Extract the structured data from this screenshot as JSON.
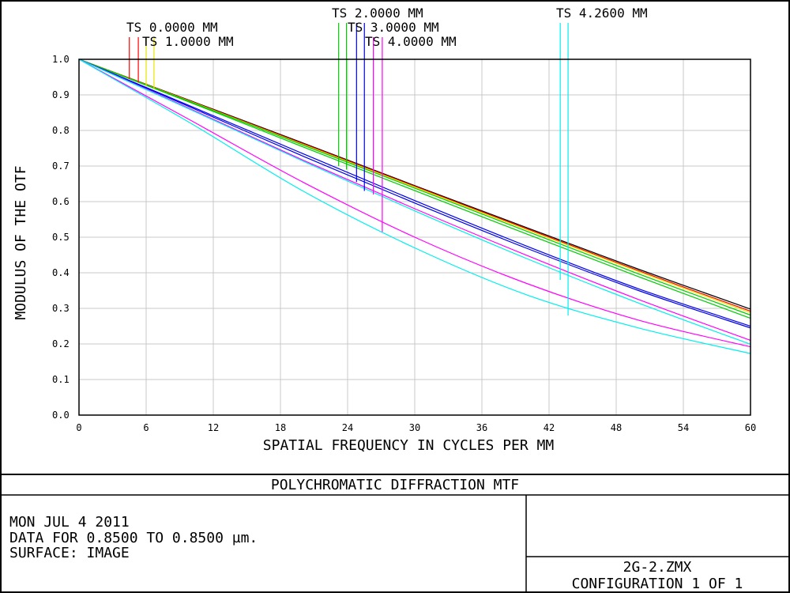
{
  "chart_data": {
    "type": "line",
    "title": "POLYCHROMATIC DIFFRACTION MTF",
    "xlabel": "SPATIAL FREQUENCY IN CYCLES PER MM",
    "ylabel": "MODULUS OF THE OTF",
    "xlim": [
      0,
      60
    ],
    "ylim": [
      0,
      1
    ],
    "xticks": [
      "0",
      "6",
      "12",
      "18",
      "24",
      "30",
      "36",
      "42",
      "48",
      "54",
      "60"
    ],
    "yticks": [
      "0.0",
      "0.1",
      "0.2",
      "0.3",
      "0.4",
      "0.5",
      "0.6",
      "0.7",
      "0.8",
      "0.9",
      "1.0"
    ],
    "grid": true,
    "legend": [
      {
        "label": "TS 0.0000 MM",
        "color": "#ff0000",
        "markers": [
          {
            "x": 4.5,
            "color": "#ff0000",
            "y": 0.945
          },
          {
            "x": 5.3,
            "color": "#ff0000",
            "y": 0.935
          }
        ]
      },
      {
        "label": "TS 1.0000 MM",
        "color": "#e6e600",
        "markers": [
          {
            "x": 6.0,
            "color": "#e6e600",
            "y": 0.925
          },
          {
            "x": 6.7,
            "color": "#e6e600",
            "y": 0.915
          }
        ]
      },
      {
        "label": "TS 2.0000 MM",
        "color": "#00cc00",
        "markers": [
          {
            "x": 23.2,
            "color": "#00cc00",
            "y": 0.7
          },
          {
            "x": 23.9,
            "color": "#00cc00",
            "y": 0.69
          }
        ]
      },
      {
        "label": "TS 3.0000 MM",
        "color": "#0000ee",
        "markers": [
          {
            "x": 24.8,
            "color": "#0000ee",
            "y": 0.655
          },
          {
            "x": 25.5,
            "color": "#0000ee",
            "y": 0.63
          }
        ]
      },
      {
        "label": "TS 4.0000 MM",
        "color": "#ff00ff",
        "markers": [
          {
            "x": 26.3,
            "color": "#ff00ff",
            "y": 0.62
          },
          {
            "x": 27.1,
            "color": "#ff00ff",
            "y": 0.515
          }
        ]
      },
      {
        "label": "TS 4.2600 MM",
        "color": "#00eeee",
        "markers": [
          {
            "x": 43.0,
            "color": "#00eeee",
            "y": 0.38
          },
          {
            "x": 43.7,
            "color": "#00eeee",
            "y": 0.28
          }
        ]
      }
    ],
    "series": [
      {
        "color": "#000000",
        "x": [
          0,
          10,
          20,
          30,
          40,
          50,
          60
        ],
        "values": [
          1.0,
          0.883,
          0.765,
          0.645,
          0.527,
          0.41,
          0.298
        ]
      },
      {
        "color": "#ff0000",
        "x": [
          0,
          10,
          20,
          30,
          40,
          50,
          60
        ],
        "values": [
          1.0,
          0.882,
          0.763,
          0.643,
          0.524,
          0.406,
          0.292
        ]
      },
      {
        "color": "#e6e600",
        "x": [
          0,
          10,
          20,
          30,
          40,
          50,
          60
        ],
        "values": [
          1.0,
          0.881,
          0.761,
          0.641,
          0.521,
          0.403,
          0.288
        ]
      },
      {
        "color": "#00cc00",
        "x": [
          0,
          10,
          20,
          30,
          40,
          50,
          60
        ],
        "values": [
          1.0,
          0.88,
          0.759,
          0.638,
          0.517,
          0.397,
          0.281
        ]
      },
      {
        "color": "#00cc00",
        "x": [
          0,
          10,
          20,
          30,
          40,
          50,
          60
        ],
        "values": [
          1.0,
          0.878,
          0.754,
          0.631,
          0.509,
          0.389,
          0.272
        ]
      },
      {
        "color": "#0000ee",
        "x": [
          0,
          10,
          20,
          30,
          40,
          50,
          60
        ],
        "values": [
          1.0,
          0.868,
          0.735,
          0.603,
          0.475,
          0.355,
          0.25
        ]
      },
      {
        "color": "#0000ee",
        "x": [
          0,
          10,
          20,
          30,
          40,
          50,
          60
        ],
        "values": [
          1.0,
          0.865,
          0.728,
          0.596,
          0.469,
          0.35,
          0.245
        ]
      },
      {
        "color": "#ff00ff",
        "x": [
          0,
          10,
          20,
          30,
          40,
          50,
          60
        ],
        "values": [
          1.0,
          0.86,
          0.717,
          0.58,
          0.449,
          0.325,
          0.21
        ]
      },
      {
        "color": "#00eeee",
        "x": [
          0,
          10,
          20,
          30,
          40,
          50,
          60
        ],
        "values": [
          1.0,
          0.858,
          0.714,
          0.574,
          0.44,
          0.315,
          0.199
        ]
      },
      {
        "color": "#ff00ff",
        "x": [
          0,
          10,
          20,
          30,
          40,
          50,
          60
        ],
        "values": [
          1.0,
          0.828,
          0.655,
          0.5,
          0.37,
          0.267,
          0.192
        ]
      },
      {
        "color": "#00eeee",
        "x": [
          0,
          10,
          20,
          30,
          40,
          50,
          60
        ],
        "values": [
          1.0,
          0.82,
          0.63,
          0.47,
          0.338,
          0.245,
          0.173
        ]
      }
    ]
  },
  "info": {
    "date": "MON JUL 4 2011",
    "data_range": "DATA FOR 0.8500 TO 0.8500 µm.",
    "surface": "SURFACE: IMAGE",
    "file": "2G-2.ZMX",
    "configuration": "CONFIGURATION 1 OF 1"
  }
}
